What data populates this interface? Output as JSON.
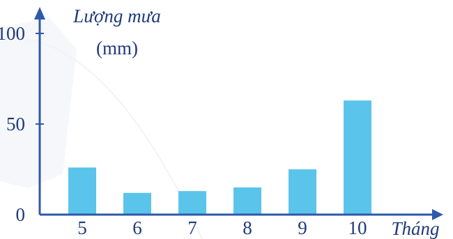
{
  "chart_data": {
    "type": "bar",
    "categories": [
      "5",
      "6",
      "7",
      "8",
      "9",
      "10"
    ],
    "values": [
      26,
      12,
      13,
      15,
      25,
      63
    ],
    "ylabel": "Lượng mưa",
    "yunit": "(mm)",
    "xlabel": "Tháng",
    "ylim": [
      0,
      100
    ],
    "yticks": [
      "0",
      "50",
      "100"
    ],
    "grid": false,
    "colors": {
      "bar": "#5bc4ea",
      "axis": "#2e5aa8",
      "text": "#1f3a7a",
      "decor": "#dfe5ee"
    }
  }
}
